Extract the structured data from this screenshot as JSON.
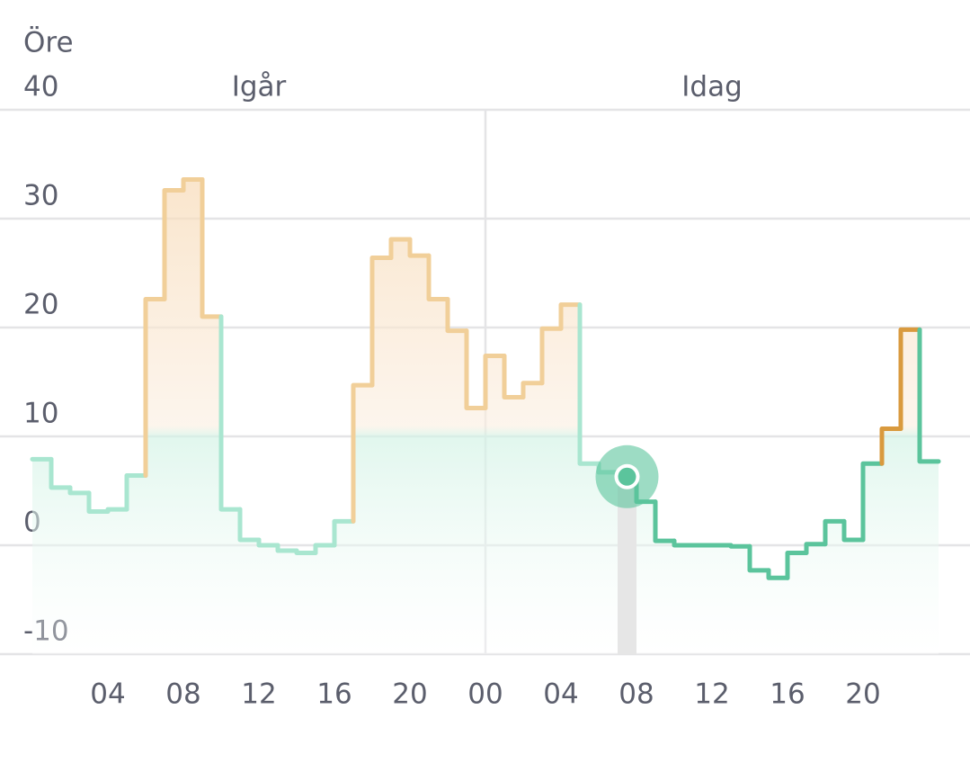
{
  "chart_data": {
    "type": "step",
    "y_label": "Öre",
    "day_labels": [
      "Igår",
      "Idag"
    ],
    "categories": [
      null,
      null,
      null,
      null,
      "04",
      null,
      null,
      null,
      "08",
      null,
      null,
      null,
      "12",
      null,
      null,
      null,
      "16",
      null,
      null,
      null,
      "20",
      null,
      null,
      null,
      "00",
      null,
      null,
      null,
      "04",
      null,
      null,
      null,
      "08",
      null,
      null,
      null,
      "12",
      null,
      null,
      null,
      "16",
      null,
      null,
      null,
      "20",
      null,
      null,
      null
    ],
    "values": [
      7.9,
      5.3,
      4.8,
      3.1,
      3.3,
      6.4,
      22.6,
      32.6,
      33.6,
      21.0,
      3.3,
      0.5,
      0,
      -0.5,
      -0.7,
      0,
      2.2,
      14.7,
      26.4,
      28.1,
      26.6,
      22.6,
      19.7,
      12.6,
      17.4,
      13.6,
      14.9,
      19.9,
      22.1,
      7.5,
      6.7,
      6.3,
      4.0,
      0.4,
      0,
      0,
      0,
      -0.1,
      -2.3,
      -3.0,
      -0.7,
      0.1,
      2.2,
      0.5,
      7.5,
      10.7,
      19.8,
      7.7
    ],
    "threshold": 10,
    "highlight_index": 31,
    "colors": {
      "high": "#d99a3e",
      "low": "#5bc49c",
      "high_past": "#f1cf99",
      "low_past": "#a9e6d0"
    },
    "ylim": [
      -10,
      40
    ],
    "yticks": [
      -10,
      0,
      10,
      20,
      30,
      40
    ],
    "grid": true
  }
}
